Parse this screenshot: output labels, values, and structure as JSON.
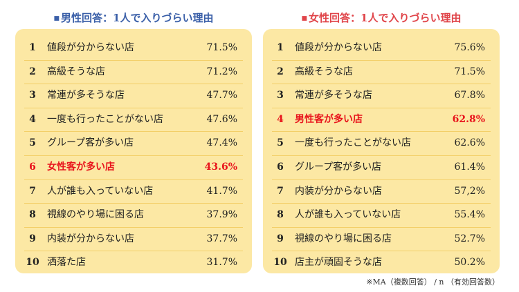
{
  "chart_data": [
    {
      "type": "table",
      "title_marker": "■",
      "title": "男性回答：1人で入りづらい理由",
      "rows": [
        {
          "rank": "1",
          "label": "値段が分からない店",
          "value_text": "71.5%",
          "value": 71.5
        },
        {
          "rank": "2",
          "label": "高級そうな店",
          "value_text": "71.2%",
          "value": 71.2
        },
        {
          "rank": "3",
          "label": "常連が多そうな店",
          "value_text": "47.7%",
          "value": 47.7
        },
        {
          "rank": "4",
          "label": "一度も行ったことがない店",
          "value_text": "47.6%",
          "value": 47.6
        },
        {
          "rank": "5",
          "label": "グループ客が多い店",
          "value_text": "47.4%",
          "value": 47.4
        },
        {
          "rank": "6",
          "label": "女性客が多い店",
          "value_text": "43.6%",
          "value": 43.6,
          "highlight": true
        },
        {
          "rank": "7",
          "label": "人が誰も入っていない店",
          "value_text": "41.7%",
          "value": 41.7
        },
        {
          "rank": "8",
          "label": "視線のやり場に困る店",
          "value_text": "37.9%",
          "value": 37.9
        },
        {
          "rank": "9",
          "label": "内装が分からない店",
          "value_text": "37.7%",
          "value": 37.7
        },
        {
          "rank": "10",
          "label": "洒落た店",
          "value_text": "31.7%",
          "value": 31.7
        }
      ]
    },
    {
      "type": "table",
      "title_marker": "■",
      "title": "女性回答：1人で入りづらい理由",
      "rows": [
        {
          "rank": "1",
          "label": "値段が分からない店",
          "value_text": "75.6%",
          "value": 75.6
        },
        {
          "rank": "2",
          "label": "高級そうな店",
          "value_text": "71.5%",
          "value": 71.5
        },
        {
          "rank": "3",
          "label": "常連が多そうな店",
          "value_text": "67.8%",
          "value": 67.8
        },
        {
          "rank": "4",
          "label": "男性客が多い店",
          "value_text": "62.8%",
          "value": 62.8,
          "highlight": true
        },
        {
          "rank": "5",
          "label": "一度も行ったことがない店",
          "value_text": "62.6%",
          "value": 62.6
        },
        {
          "rank": "6",
          "label": "グループ客が多い店",
          "value_text": "61.4%",
          "value": 61.4
        },
        {
          "rank": "7",
          "label": "内装が分からない店",
          "value_text": "57,2%",
          "value": 57.2
        },
        {
          "rank": "8",
          "label": "人が誰も入っていない店",
          "value_text": "55.4%",
          "value": 55.4
        },
        {
          "rank": "9",
          "label": "視線のやり場に困る店",
          "value_text": "52.7%",
          "value": 52.7
        },
        {
          "rank": "10",
          "label": "店主が頑固そうな店",
          "value_text": "50.2%",
          "value": 50.2
        }
      ]
    }
  ],
  "footnote": "※MA（複数回答） / n （有効回答数）",
  "colors": {
    "men_title": "#3a5fa8",
    "women_title": "#e0454a",
    "panel_bg": "#fce8a4",
    "divider": "#f3cf68",
    "highlight": "#e8141c"
  }
}
